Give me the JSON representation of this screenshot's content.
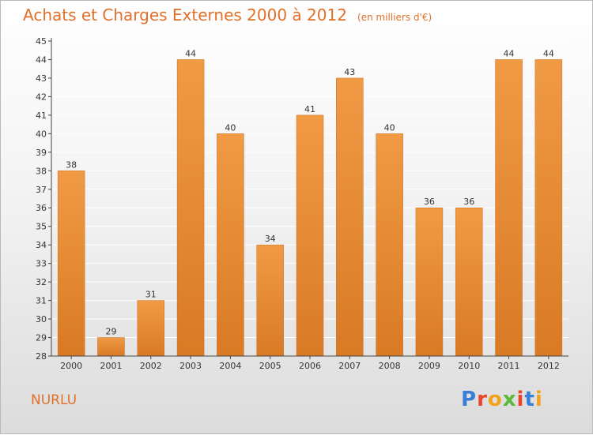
{
  "header": {
    "title": "Achats et Charges Externes 2000 à 2012",
    "subtitle": "(en milliers d'€)"
  },
  "footer": {
    "location": "NURLU",
    "logo_text": "Proxiti",
    "logo_colors": [
      "#3a7fd6",
      "#e8462a",
      "#f2a21b",
      "#5bb83b",
      "#e8462a",
      "#3a7fd6",
      "#f2a21b"
    ]
  },
  "colors": {
    "bar": "#f09a45",
    "bar_dark": "#d97a25",
    "grid": "#ffffff",
    "axis": "#444444",
    "text": "#333333"
  },
  "chart_data": {
    "type": "bar",
    "title": "Achats et Charges Externes 2000 à 2012",
    "categories": [
      "2000",
      "2001",
      "2002",
      "2003",
      "2004",
      "2005",
      "2006",
      "2007",
      "2008",
      "2009",
      "2010",
      "2011",
      "2012"
    ],
    "values": [
      38,
      29,
      31,
      44,
      40,
      34,
      41,
      43,
      40,
      36,
      36,
      44,
      44
    ],
    "ylim": [
      28,
      45
    ],
    "yticks": [
      28,
      29,
      30,
      31,
      32,
      33,
      34,
      35,
      36,
      37,
      38,
      39,
      40,
      41,
      42,
      43,
      44,
      45
    ],
    "grid": true,
    "data_labels": true,
    "xlabel": "",
    "ylabel": ""
  }
}
